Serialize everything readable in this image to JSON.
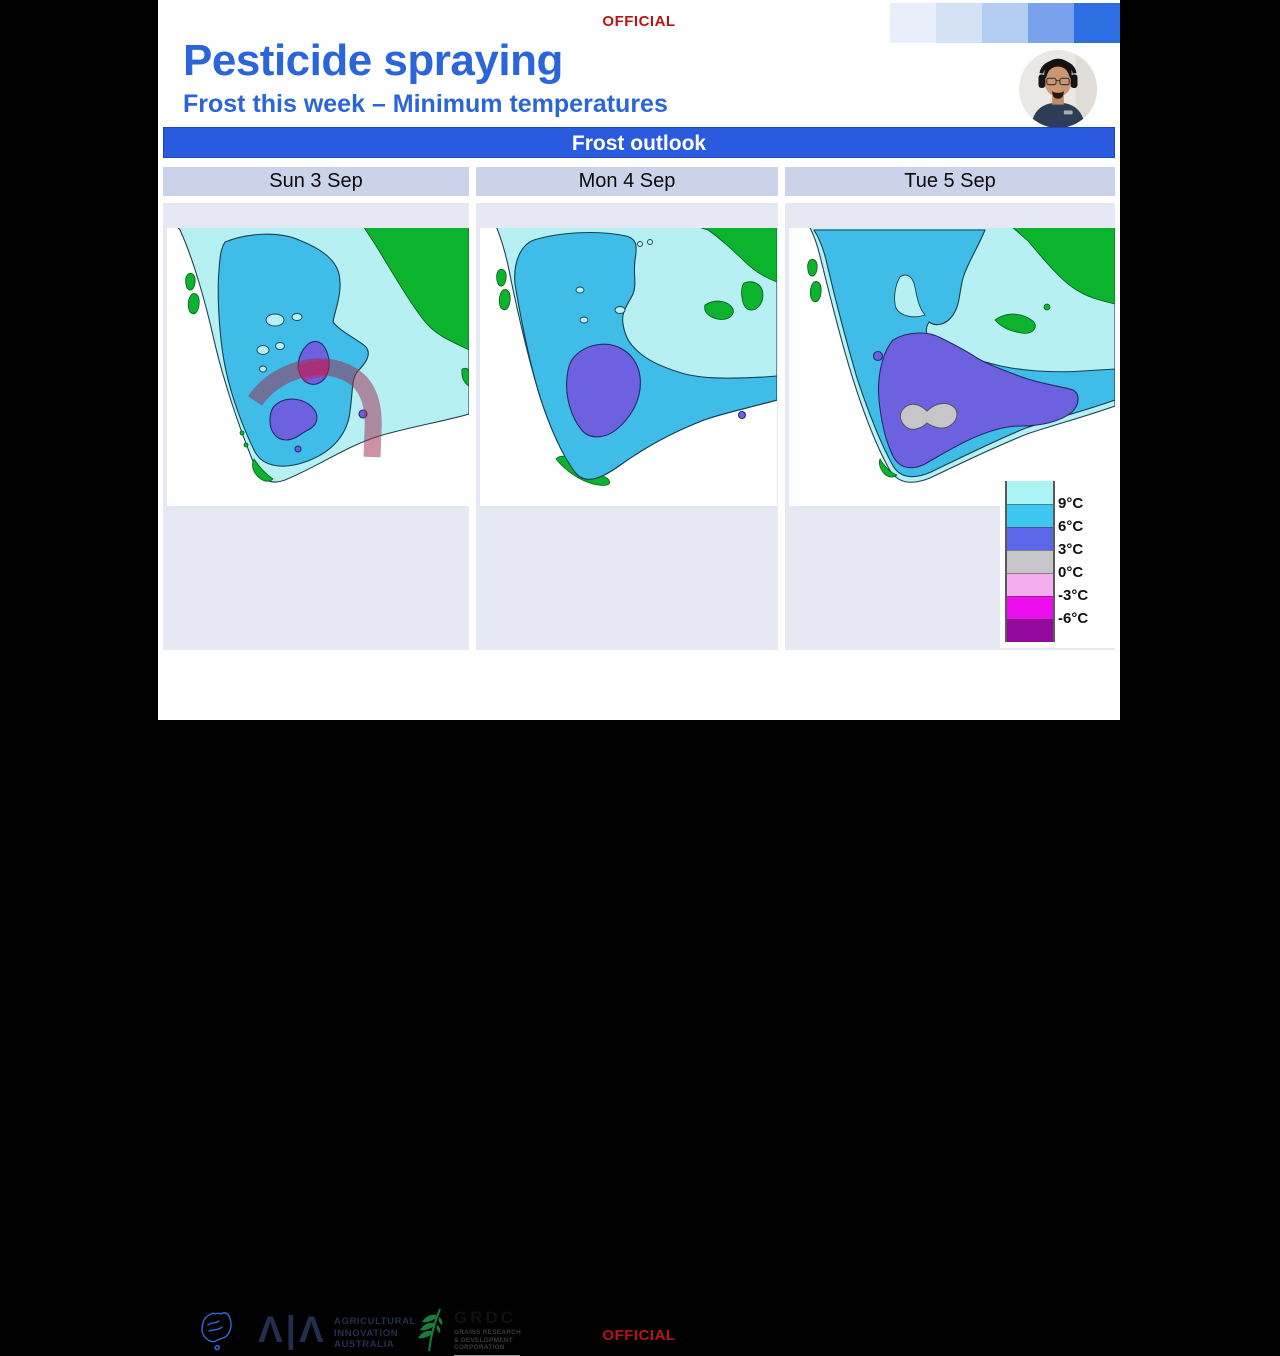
{
  "slide": {
    "official_top": "OFFICIAL",
    "official_bottom": "OFFICIAL",
    "title": "Pesticide spraying",
    "subtitle": "Frost this week – Minimum temperatures",
    "banner": "Frost outlook",
    "days": [
      "Sun 3 Sep",
      "Mon 4 Sep",
      "Tue 5 Sep"
    ]
  },
  "legend": {
    "labels": [
      "9°C",
      "6°C",
      "3°C",
      "0°C",
      "-3°C",
      "-6°C"
    ],
    "band_colors": [
      "#ABF3F5",
      "#3EC7F0",
      "#5A67E8",
      "#C6C6CA",
      "#F6ADEF",
      "#ED0CEE",
      "#93089F"
    ]
  },
  "map_palette": {
    "cyan_light": "#B7F0F2",
    "cyan_mid": "#3FBDE8",
    "violet": "#6E61DF",
    "green": "#0CB32C",
    "gray": "#C6C6C8",
    "annotation": "rgba(158,44,80,0.52)",
    "annotation_overlap": "rgba(205,25,95,0.5)"
  },
  "colors": {
    "title_blue": "#2A65D9",
    "banner_blue": "#2A5BDE",
    "day_band_bg": "#CBD3EB",
    "panel_bg": "#E6E9F4",
    "official_red": "#B91414",
    "gradient_bar": [
      "#E9EFFA",
      "#D5E2F5",
      "#B3CDF3",
      "#7AA2EC",
      "#2D6FE2"
    ]
  },
  "footer": {
    "aia": {
      "glyph": "Λ|Λ",
      "lines": [
        "AGRICULTURAL",
        "INNOVATION",
        "AUSTRALIA"
      ]
    },
    "grdc": {
      "title": "GRDC",
      "lines": [
        "GRAINS RESEARCH",
        "& DEVELOPMENT",
        "CORPORATION"
      ]
    }
  }
}
